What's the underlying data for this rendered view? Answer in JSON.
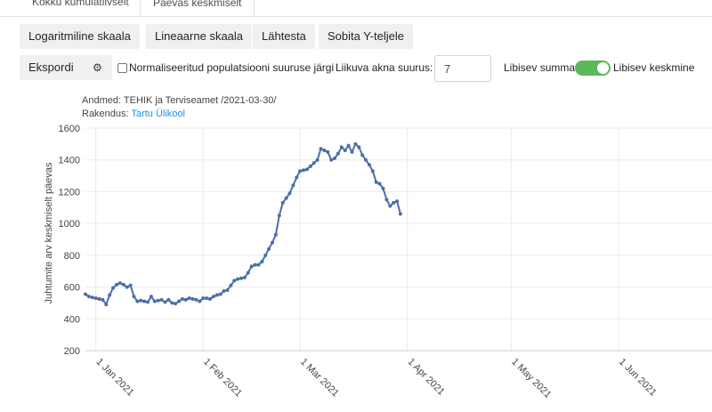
{
  "tabs": [
    {
      "label": "Kokku kumulatiivselt"
    },
    {
      "label": "Päevas keskmiselt"
    }
  ],
  "scale_buttons": {
    "log": "Logaritmiline skaala",
    "linear": "Lineaarne skaala",
    "reset": "Lähtesta",
    "fit_y": "Sobita Y-teljele"
  },
  "controls": {
    "export_label": "Ekspordi",
    "normalize_label": "Normaliseeritud populatsiooni suuruse järgi",
    "window_label": "Liikuva akna suurus:",
    "window_value": "7",
    "toggle_left": "Libisev summa",
    "toggle_right": "Libisev keskmine"
  },
  "source": {
    "data_line": "Andmed: TEHIK ja Terviseamet /2021-03-30/",
    "app_prefix": "Rakendus:",
    "app_link": "Tartu Ülikool"
  },
  "chart_data": {
    "type": "line",
    "title": "",
    "xlabel": "",
    "ylabel": "Juhtumite arv keskmiselt päevas",
    "ylim": [
      200,
      1600
    ],
    "y_ticks": [
      200,
      400,
      600,
      800,
      1000,
      1200,
      1400,
      1600
    ],
    "x_tick_labels": [
      "1 Jan 2021",
      "1 Feb 2021",
      "1 Mar 2021",
      "1 Apr 2021",
      "1 May 2021",
      "1 Jun 2021"
    ],
    "x_tick_dates": [
      "2021-01-01",
      "2021-02-01",
      "2021-03-01",
      "2021-04-01",
      "2021-05-01",
      "2021-06-01"
    ],
    "x_start": "2020-12-29",
    "x_end": "2021-06-28",
    "grid": true,
    "color": "#4a6fa8",
    "series": [
      {
        "x": [
          "2020-12-29",
          "2020-12-30",
          "2020-12-31",
          "2021-01-01",
          "2021-01-02",
          "2021-01-03",
          "2021-01-04",
          "2021-01-05",
          "2021-01-06",
          "2021-01-07",
          "2021-01-08",
          "2021-01-09",
          "2021-01-10",
          "2021-01-11",
          "2021-01-12",
          "2021-01-13",
          "2021-01-14",
          "2021-01-15",
          "2021-01-16",
          "2021-01-17",
          "2021-01-18",
          "2021-01-19",
          "2021-01-20",
          "2021-01-21",
          "2021-01-22",
          "2021-01-23",
          "2021-01-24",
          "2021-01-25",
          "2021-01-26",
          "2021-01-27",
          "2021-01-28",
          "2021-01-29",
          "2021-01-30",
          "2021-01-31",
          "2021-02-01",
          "2021-02-02",
          "2021-02-03",
          "2021-02-04",
          "2021-02-05",
          "2021-02-06",
          "2021-02-07",
          "2021-02-08",
          "2021-02-09",
          "2021-02-10",
          "2021-02-11",
          "2021-02-12",
          "2021-02-13",
          "2021-02-14",
          "2021-02-15",
          "2021-02-16",
          "2021-02-17",
          "2021-02-18",
          "2021-02-19",
          "2021-02-20",
          "2021-02-21",
          "2021-02-22",
          "2021-02-23",
          "2021-02-24",
          "2021-02-25",
          "2021-02-26",
          "2021-02-27",
          "2021-02-28",
          "2021-03-01",
          "2021-03-02",
          "2021-03-03",
          "2021-03-04",
          "2021-03-05",
          "2021-03-06",
          "2021-03-07",
          "2021-03-08",
          "2021-03-09",
          "2021-03-10",
          "2021-03-11",
          "2021-03-12",
          "2021-03-13",
          "2021-03-14",
          "2021-03-15",
          "2021-03-16",
          "2021-03-17",
          "2021-03-18",
          "2021-03-19",
          "2021-03-20",
          "2021-03-21",
          "2021-03-22",
          "2021-03-23",
          "2021-03-24",
          "2021-03-25",
          "2021-03-26",
          "2021-03-27",
          "2021-03-28",
          "2021-03-29",
          "2021-03-30"
        ],
        "values": [
          555,
          540,
          535,
          530,
          525,
          520,
          490,
          550,
          595,
          615,
          625,
          615,
          600,
          610,
          540,
          510,
          515,
          510,
          505,
          540,
          510,
          515,
          520,
          505,
          520,
          500,
          495,
          510,
          525,
          520,
          530,
          525,
          520,
          510,
          530,
          530,
          525,
          540,
          550,
          555,
          575,
          580,
          610,
          640,
          650,
          655,
          660,
          690,
          730,
          740,
          740,
          760,
          800,
          840,
          880,
          930,
          1050,
          1130,
          1160,
          1190,
          1240,
          1290,
          1330,
          1335,
          1340,
          1360,
          1380,
          1400,
          1470,
          1460,
          1450,
          1400,
          1410,
          1440,
          1480,
          1460,
          1490,
          1450,
          1500,
          1480,
          1430,
          1400,
          1370,
          1330,
          1260,
          1250,
          1220,
          1150,
          1110,
          1130,
          1140,
          1060
        ]
      }
    ]
  }
}
